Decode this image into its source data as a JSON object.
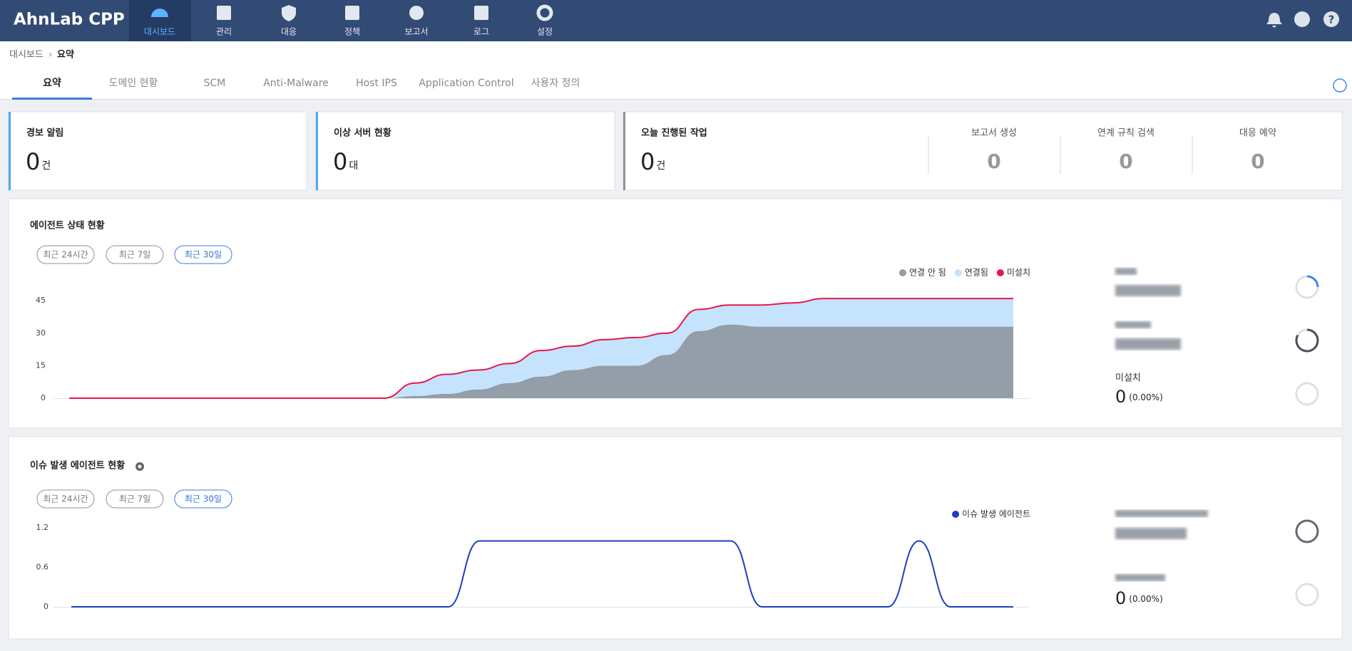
{
  "header": {
    "brand": "AhnLab CPP",
    "nav": [
      "대시보드",
      "관리",
      "대응",
      "정책",
      "보고서",
      "로그",
      "설정"
    ]
  },
  "breadcrumb": [
    "대시보드",
    "요약"
  ],
  "tabs": [
    "요약",
    "도메인 현황",
    "SCM",
    "Anti-Malware",
    "Host IPS",
    "Application Control",
    "사용자 정의"
  ],
  "summary": [
    {
      "title": "경보 알림",
      "value": 0,
      "unit": "건"
    },
    {
      "title": "이상 서버 현황",
      "value": 0,
      "unit": "대"
    },
    {
      "title": "오늘 진행된 작업",
      "value": 0,
      "unit": "건",
      "items": [
        {
          "label": "보고서 생성",
          "value": 0
        },
        {
          "label": "연계 규칙 검색",
          "value": 0
        },
        {
          "label": "대응 예약",
          "value": 0
        }
      ]
    }
  ],
  "agent_panel": {
    "title": "에이전트 상태 현황",
    "periods": [
      "최근 24시간",
      "최근 7일",
      "최근 30일"
    ],
    "chart": {
      "type": "area",
      "stacked": true,
      "ylim": [
        0,
        50
      ],
      "yticks": [
        0,
        15,
        30,
        45
      ],
      "series": [
        {
          "name": "연결 안 됨",
          "color": "#939ea8",
          "values": [
            0,
            0,
            0,
            0,
            0,
            0,
            0,
            0,
            0,
            0,
            0,
            1,
            2,
            4,
            7,
            10,
            13,
            15,
            15,
            20,
            31,
            34,
            33,
            33,
            33,
            33,
            33,
            33,
            33,
            33,
            33
          ]
        },
        {
          "name": "연결됨",
          "color": "#c5e3fc",
          "values": [
            0,
            0,
            0,
            0,
            0,
            0,
            0,
            0,
            0,
            0,
            0,
            6,
            9,
            9,
            9,
            12,
            11,
            12,
            13,
            10,
            10,
            9,
            10,
            11,
            13,
            13,
            13,
            13,
            13,
            13,
            13
          ]
        },
        {
          "name": "미설치",
          "color": "#e8174a",
          "values": [
            0,
            0,
            0,
            0,
            0,
            0,
            0,
            0,
            0,
            0,
            0,
            0,
            0,
            0,
            0,
            0,
            0,
            0,
            0,
            0,
            0,
            0,
            0,
            0,
            0,
            0,
            0,
            0,
            0,
            0,
            0
          ]
        }
      ]
    },
    "stats": [
      {
        "label": "미설치",
        "value": 0,
        "percent": "(0.00%)"
      }
    ]
  },
  "issue_panel": {
    "title": "이슈 발생 에이전트 현황",
    "periods": [
      "최근 24시간",
      "최근 7일",
      "최근 30일"
    ],
    "chart": {
      "type": "line",
      "ylim": [
        0,
        1.2
      ],
      "yticks": [
        0,
        0.6,
        1.2
      ],
      "series": [
        {
          "name": "이슈 발생 에이전트",
          "color": "#1e3fbf",
          "values": [
            0,
            0,
            0,
            0,
            0,
            0,
            0,
            0,
            0,
            0,
            0,
            0,
            0,
            1,
            1,
            1,
            1,
            1,
            1,
            1,
            1,
            1,
            0,
            0,
            0,
            0,
            0,
            1,
            0,
            0,
            0
          ]
        }
      ]
    },
    "stats": [
      {
        "value": 0,
        "percent": "(0.00%)"
      }
    ]
  }
}
